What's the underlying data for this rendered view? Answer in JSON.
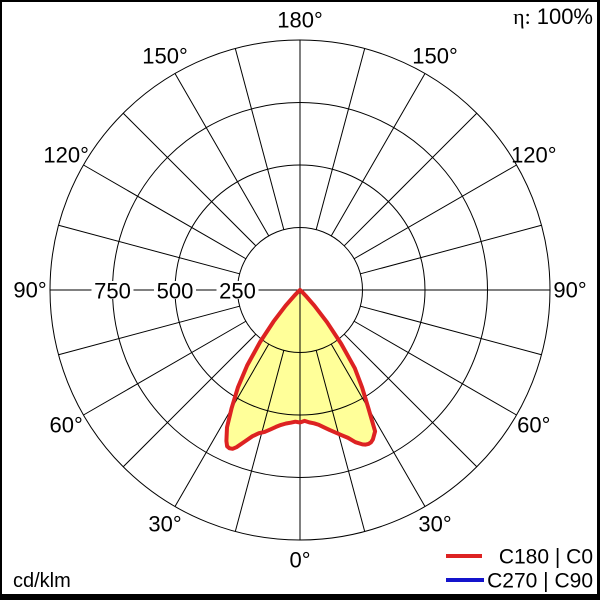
{
  "header": {
    "eta_prefix": "η:",
    "eta_value": "100%"
  },
  "footer": {
    "unit_label": "cd/klm"
  },
  "legend": {
    "items": [
      {
        "label": "C180 | C0",
        "color": "#dd2222"
      },
      {
        "label": "C270 | C90",
        "color": "#1414cc"
      }
    ]
  },
  "colors": {
    "curve_red": "#dd2222",
    "curve_blue": "#1414cc",
    "fill_yellow": "#ffff99",
    "grid": "#000000",
    "text": "#000000",
    "background": "#ffffff",
    "frame": "#000000"
  },
  "chart_data": {
    "type": "polar",
    "unit": "cd/klm",
    "efficiency": "100%",
    "radial_axis": {
      "max": 1000,
      "rings": [
        250,
        500,
        750,
        1000
      ],
      "ring_labels": [
        "250",
        "500",
        "750"
      ]
    },
    "angular_axis": {
      "grid_step_deg": 15,
      "label_step_deg": 30,
      "label_angles": [
        {
          "gamma": 0,
          "text": "0°"
        },
        {
          "gamma": 30,
          "text": "30°"
        },
        {
          "gamma": -30,
          "text": "30°"
        },
        {
          "gamma": 60,
          "text": "60°"
        },
        {
          "gamma": -60,
          "text": "60°"
        },
        {
          "gamma": 90,
          "text": "90°"
        },
        {
          "gamma": -90,
          "text": "90°"
        },
        {
          "gamma": 120,
          "text": "120°"
        },
        {
          "gamma": -120,
          "text": "120°"
        },
        {
          "gamma": 150,
          "text": "150°"
        },
        {
          "gamma": -150,
          "text": "150°"
        },
        {
          "gamma": 180,
          "text": "180°"
        }
      ]
    },
    "series": [
      {
        "name": "C180 | C0",
        "color": "#dd2222",
        "fill": "#ffff99",
        "visible": true,
        "gamma_c180": [
          50,
          47.5,
          45,
          42.5,
          40,
          37.5,
          35,
          32.5,
          30,
          28,
          26,
          25,
          24,
          23,
          22,
          20,
          18,
          16,
          14,
          12,
          10,
          8,
          6,
          4,
          2,
          0
        ],
        "intensity_c180": [
          0,
          8,
          30,
          85,
          165,
          262,
          368,
          462,
          548,
          622,
          672,
          690,
          693,
          690,
          678,
          645,
          615,
          596,
          585,
          570,
          556,
          545,
          537,
          532,
          527,
          530
        ],
        "gamma_c0": [
          0,
          2,
          4,
          6,
          8,
          10,
          12,
          14,
          16,
          18,
          20,
          22,
          23,
          24,
          25,
          26,
          28,
          30,
          32.5,
          35,
          37.5,
          40,
          42.5,
          45,
          47.5,
          50
        ],
        "intensity_c0": [
          530,
          524,
          531,
          536,
          545,
          558,
          573,
          588,
          604,
          622,
          648,
          666,
          672,
          674,
          672,
          665,
          640,
          548,
          462,
          382,
          270,
          168,
          85,
          32,
          9,
          0
        ]
      },
      {
        "name": "C270 | C90",
        "color": "#1414cc",
        "visible": false
      }
    ]
  }
}
